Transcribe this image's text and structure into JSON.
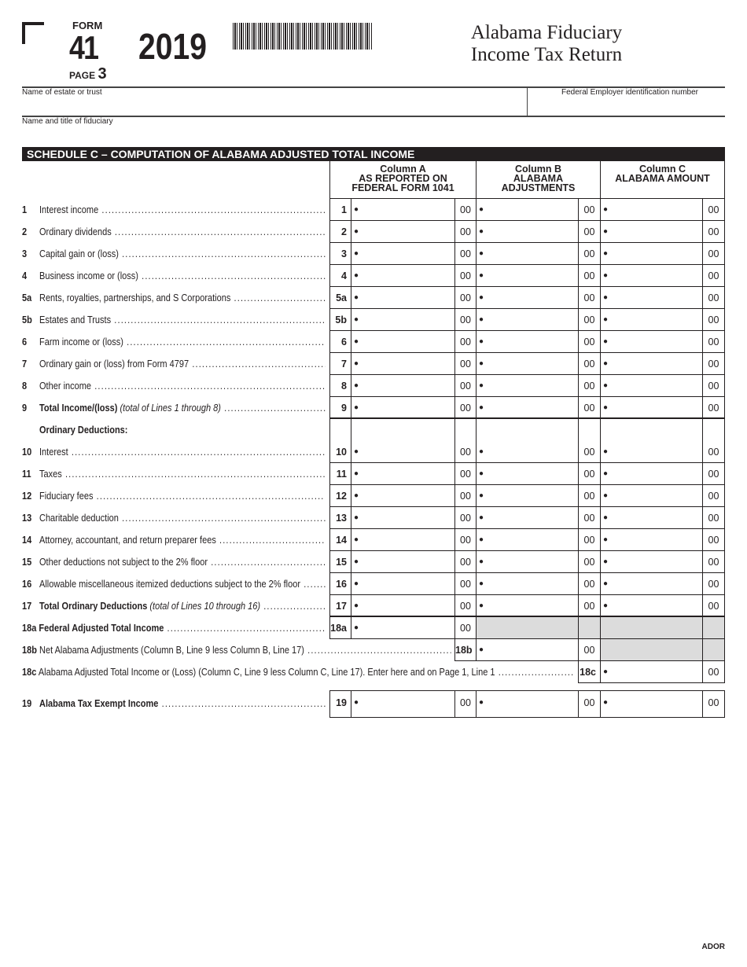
{
  "header": {
    "form_label": "FORM",
    "form_number": "41",
    "page_label": "PAGE",
    "page_number": "3",
    "year": "2019",
    "title_line1": "Alabama Fiduciary",
    "title_line2": "Income Tax Return",
    "name_estate_label": "Name of estate or trust",
    "fein_label": "Federal Employer identification number",
    "fiduciary_label": "Name and title of fiduciary"
  },
  "schedule": {
    "title": "SCHEDULE C – COMPUTATION OF ALABAMA ADJUSTED TOTAL INCOME",
    "columns": [
      {
        "l1": "Column A",
        "l2": "AS REPORTED ON",
        "l3": "FEDERAL FORM 1041"
      },
      {
        "l1": "Column B",
        "l2": "ALABAMA",
        "l3": "ADJUSTMENTS"
      },
      {
        "l1": "Column C",
        "l2": "ALABAMA AMOUNT",
        "l3": ""
      }
    ],
    "cents": "00",
    "bullet": "●",
    "rows": [
      {
        "num": "1",
        "label": "Interest income",
        "line": "1",
        "type": "full"
      },
      {
        "num": "2",
        "label": "Ordinary dividends",
        "line": "2",
        "type": "full"
      },
      {
        "num": "3",
        "label": "Capital gain or (loss)",
        "line": "3",
        "type": "full"
      },
      {
        "num": "4",
        "label": "Business income or (loss)",
        "line": "4",
        "type": "full"
      },
      {
        "num": "5a",
        "label": "Rents, royalties, partnerships, and S Corporations",
        "line": "5a",
        "type": "full"
      },
      {
        "num": "5b",
        "label": "Estates and Trusts",
        "line": "5b",
        "type": "full"
      },
      {
        "num": "6",
        "label": "Farm income or (loss)",
        "line": "6",
        "type": "full"
      },
      {
        "num": "7",
        "label": "Ordinary gain or (loss) from Form 4797",
        "line": "7",
        "type": "full"
      },
      {
        "num": "8",
        "label": "Other income",
        "line": "8",
        "type": "full"
      },
      {
        "num": "9",
        "label": "Total Income/(loss)",
        "note": "(total of Lines 1 through 8)",
        "bold": true,
        "line": "9",
        "type": "full"
      },
      {
        "num": "",
        "label": "Ordinary Deductions:",
        "bold": true,
        "type": "blank"
      },
      {
        "num": "10",
        "label": "Interest",
        "line": "10",
        "type": "full"
      },
      {
        "num": "11",
        "label": "Taxes",
        "line": "11",
        "type": "full"
      },
      {
        "num": "12",
        "label": "Fiduciary fees",
        "line": "12",
        "type": "full"
      },
      {
        "num": "13",
        "label": "Charitable deduction",
        "line": "13",
        "type": "full"
      },
      {
        "num": "14",
        "label": "Attorney, accountant, and return preparer fees",
        "line": "14",
        "type": "full"
      },
      {
        "num": "15",
        "label": "Other deductions not subject to the 2% floor",
        "line": "15",
        "type": "full"
      },
      {
        "num": "16",
        "label": "Allowable miscellaneous itemized deductions subject to the 2% floor",
        "line": "16",
        "type": "full"
      },
      {
        "num": "17",
        "label": "Total Ordinary Deductions",
        "note": "(total of Lines 10 through 16)",
        "bold": true,
        "line": "17",
        "type": "full"
      },
      {
        "num": "18a",
        "label": "Federal Adjusted Total Income",
        "bold": true,
        "line": "18a",
        "type": "a"
      },
      {
        "num": "18b",
        "label": "Net Alabama Adjustments (Column B, Line 9 less Column B, Line 17)",
        "line": "18b",
        "type": "b"
      },
      {
        "num": "18c",
        "label": "Alabama Adjusted Total Income or (Loss) (Column C, Line 9 less Column C, Line 17). Enter here and on Page 1, Line 1",
        "line": "18c",
        "type": "c"
      },
      {
        "num": "19",
        "label": "Alabama Tax Exempt Income",
        "bold": true,
        "line": "19",
        "type": "full"
      }
    ]
  },
  "footer": {
    "agency": "ADOR"
  }
}
